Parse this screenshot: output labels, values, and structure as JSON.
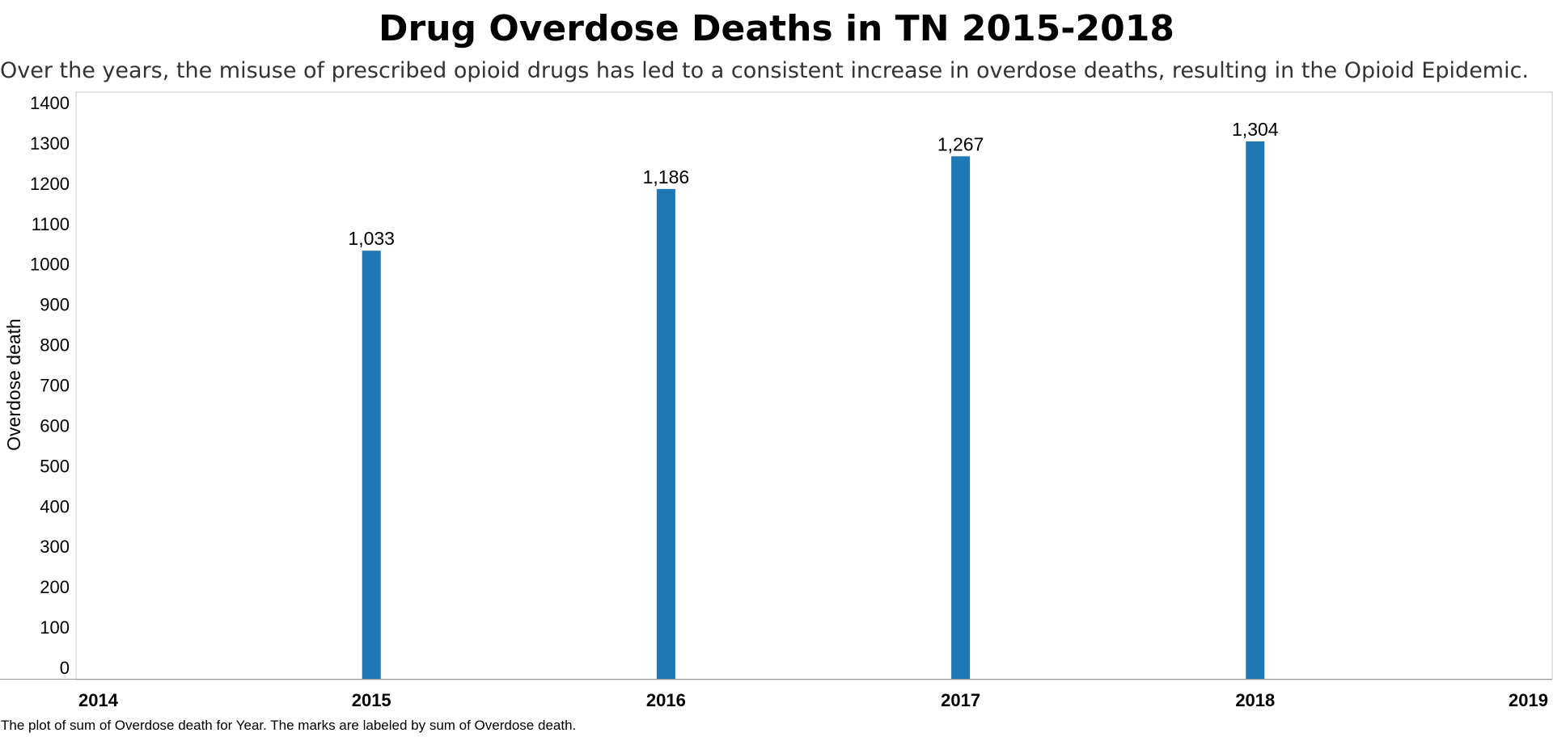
{
  "chart_data": {
    "type": "bar",
    "title": "Drug Overdose Deaths in TN 2015-2018",
    "subtitle": "Over the years, the misuse of prescribed opioid drugs has led to a consistent increase in overdose deaths, resulting in the Opioid Epidemic.",
    "ylabel": "Overdose death",
    "xlabel": "",
    "x_range": [
      2014,
      2019
    ],
    "x_ticks": [
      "2014",
      "2015",
      "2016",
      "2017",
      "2018",
      "2019"
    ],
    "y_range": [
      0,
      1400
    ],
    "y_ticks": [
      0,
      100,
      200,
      300,
      400,
      500,
      600,
      700,
      800,
      900,
      1000,
      1100,
      1200,
      1300,
      1400
    ],
    "grid": false,
    "legend": "none",
    "bar_color": "#1f77b4",
    "series": [
      {
        "x": [
          2015,
          2016,
          2017,
          2018
        ],
        "values": [
          1033,
          1186,
          1267,
          1304
        ],
        "labels": [
          "1,033",
          "1,186",
          "1,267",
          "1,304"
        ]
      }
    ],
    "caption": "The plot of sum of Overdose death for Year.  The marks are labeled by sum of Overdose death."
  }
}
